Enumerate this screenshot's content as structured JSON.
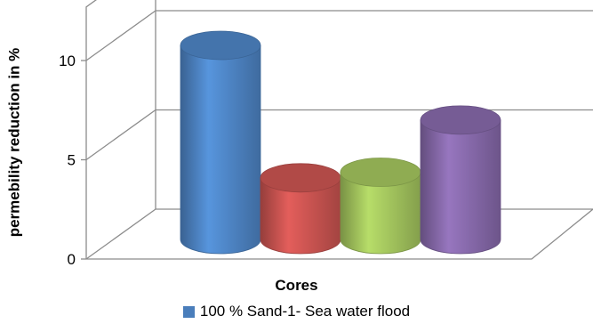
{
  "chart_data": {
    "type": "bar",
    "style": "3d-cylinder",
    "categories": [
      ""
    ],
    "series": [
      {
        "name": "100 % Sand-1- Sea water flood",
        "values": [
          10.4
        ],
        "color": "#4a7ebb"
      },
      {
        "values": [
          3.3
        ],
        "color": "#c0504d"
      },
      {
        "values": [
          3.6
        ],
        "color": "#9bbb59"
      },
      {
        "values": [
          6.4
        ],
        "color": "#8064a2"
      }
    ],
    "title": "",
    "xlabel": "Cores",
    "ylabel": "permebility reduction in %",
    "ylim": [
      0,
      10
    ],
    "yticks": [
      0,
      5,
      10
    ],
    "grid": true,
    "legend_position": "bottom"
  }
}
